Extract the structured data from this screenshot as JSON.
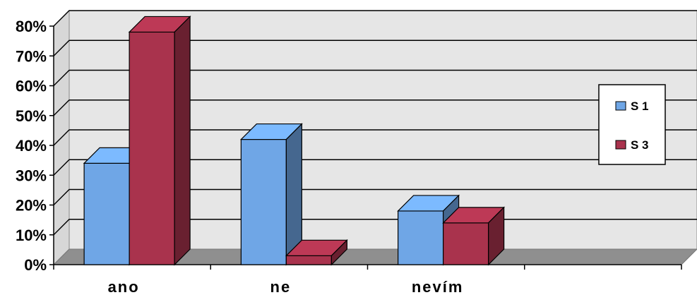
{
  "chart_data": {
    "type": "bar",
    "categories": [
      "ano",
      "ne",
      "nevím"
    ],
    "series": [
      {
        "name": "S 1",
        "values": [
          34,
          42,
          18
        ],
        "color": "#6fa6e6"
      },
      {
        "name": "S 3",
        "values": [
          78,
          3,
          14
        ],
        "color": "#a9334d"
      }
    ],
    "ylim": [
      0,
      80
    ],
    "yticks": [
      "0%",
      "10%",
      "20%",
      "30%",
      "40%",
      "50%",
      "60%",
      "70%",
      "80%"
    ],
    "grid": true,
    "legend_position": "right",
    "style": "3d-column"
  }
}
